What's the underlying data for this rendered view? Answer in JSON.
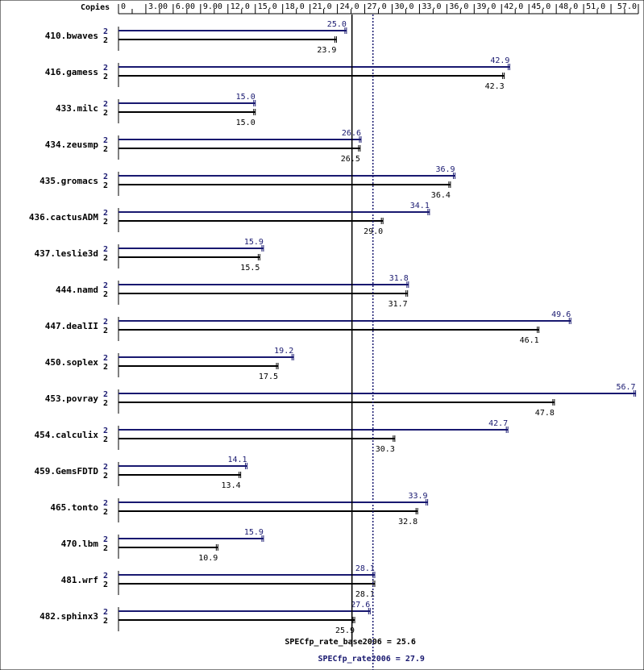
{
  "chart_data": {
    "type": "bar",
    "orientation": "horizontal",
    "copies_label": "Copies",
    "x_ticks": [
      "0",
      "3.00",
      "6.00",
      "9.00",
      "12.0",
      "15.0",
      "18.0",
      "21.0",
      "24.0",
      "27.0",
      "30.0",
      "33.0",
      "36.0",
      "39.0",
      "42.0",
      "45.0",
      "48.0",
      "51.0",
      "57.0"
    ],
    "xlim": [
      0,
      57
    ],
    "categories": [
      "410.bwaves",
      "416.gamess",
      "433.milc",
      "434.zeusmp",
      "435.gromacs",
      "436.cactusADM",
      "437.leslie3d",
      "444.namd",
      "447.dealII",
      "450.soplex",
      "453.povray",
      "454.calculix",
      "459.GemsFDTD",
      "465.tonto",
      "470.lbm",
      "481.wrf",
      "482.sphinx3"
    ],
    "series": [
      {
        "name": "peak",
        "color": "#191970",
        "copies": [
          "2",
          "2",
          "2",
          "2",
          "2",
          "2",
          "2",
          "2",
          "2",
          "2",
          "2",
          "2",
          "2",
          "2",
          "2",
          "2",
          "2"
        ],
        "values": [
          25.0,
          42.9,
          15.0,
          26.6,
          36.9,
          34.1,
          15.9,
          31.8,
          49.6,
          19.2,
          56.7,
          42.7,
          14.1,
          33.9,
          15.9,
          28.1,
          27.6
        ],
        "labels": [
          "25.0",
          "42.9",
          "15.0",
          "26.6",
          "36.9",
          "34.1",
          "15.9",
          "31.8",
          "49.6",
          "19.2",
          "56.7",
          "42.7",
          "14.1",
          "33.9",
          "15.9",
          "28.1",
          "27.6"
        ]
      },
      {
        "name": "base",
        "color": "#000000",
        "copies": [
          "2",
          "2",
          "2",
          "2",
          "2",
          "2",
          "2",
          "2",
          "2",
          "2",
          "2",
          "2",
          "2",
          "2",
          "2",
          "2",
          "2"
        ],
        "values": [
          23.9,
          42.3,
          15.0,
          26.5,
          36.4,
          29.0,
          15.5,
          31.7,
          46.1,
          17.5,
          47.8,
          30.3,
          13.4,
          32.8,
          10.9,
          28.1,
          25.9
        ],
        "labels": [
          "23.9",
          "42.3",
          "15.0",
          "26.5",
          "36.4",
          "29.0",
          "15.5",
          "31.7",
          "46.1",
          "17.5",
          "47.8",
          "30.3",
          "13.4",
          "32.8",
          "10.9",
          "28.1",
          "25.9"
        ]
      }
    ],
    "reference_lines": [
      {
        "name": "base",
        "value": 25.6,
        "label": "SPECfp_rate_base2006 = 25.6",
        "color": "#000000",
        "style": "solid"
      },
      {
        "name": "peak",
        "value": 27.9,
        "label": "SPECfp_rate2006 = 27.9",
        "color": "#191970",
        "style": "dotted"
      }
    ]
  }
}
